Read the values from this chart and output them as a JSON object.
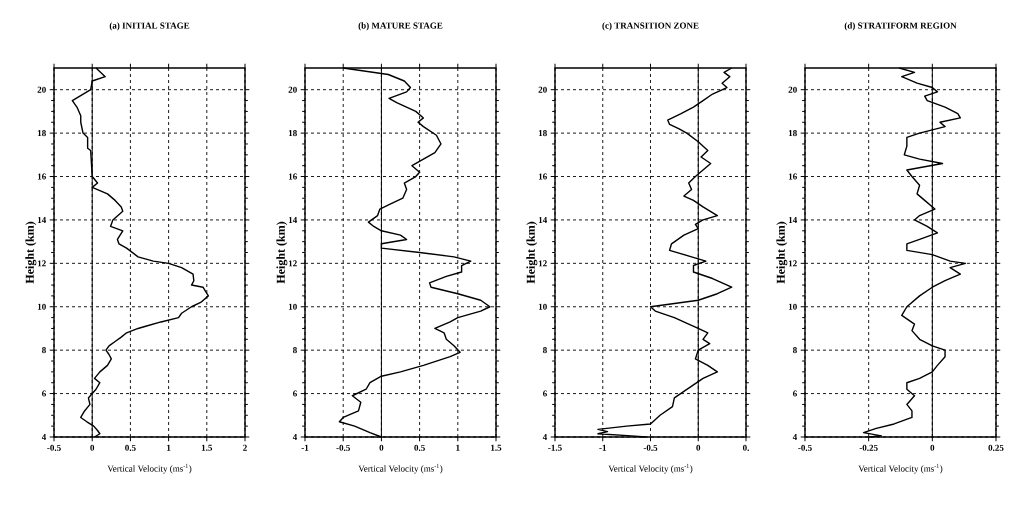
{
  "chart_data": [
    {
      "type": "line",
      "title": "(a) INITIAL STAGE",
      "xlabel": "Vertical Velocity (ms$^{-1}$)",
      "ylabel": "Height (km)",
      "xlim": [
        -0.5,
        2
      ],
      "xticks": [
        -0.5,
        0,
        0.5,
        1,
        1.5,
        2
      ],
      "ylim": [
        4,
        21
      ],
      "yticks": [
        4,
        6,
        8,
        10,
        12,
        14,
        16,
        18,
        20
      ],
      "grid": true,
      "ref_lines": [
        {
          "axis": "x",
          "value": 0,
          "color": "#000000",
          "line_style": "solid"
        }
      ],
      "series": [
        {
          "color": "#000000",
          "x": [
            0.05,
            0.17,
            0.0,
            -0.02,
            -0.26,
            -0.2,
            -0.15,
            -0.15,
            -0.12,
            -0.06,
            -0.06,
            -0.02,
            0.0,
            0.07,
            0.0,
            0.2,
            0.3,
            0.38,
            0.4,
            0.27,
            0.24,
            0.4,
            0.33,
            0.35,
            0.45,
            0.6,
            0.8,
            1.0,
            1.17,
            1.32,
            1.33,
            1.3,
            1.45,
            1.52,
            1.42,
            1.3,
            1.17,
            1.13,
            0.9,
            0.7,
            0.6,
            0.45,
            0.38,
            0.3,
            0.22,
            0.18,
            0.22,
            0.25,
            0.2,
            0.1,
            0.03,
            0.1,
            0.05,
            0.0,
            -0.05,
            -0.03,
            -0.1,
            -0.15,
            -0.07,
            0.02,
            0.07,
            0.1,
            0.03
          ],
          "values": [
            21,
            20.6,
            20.4,
            20,
            19.5,
            19.2,
            18.8,
            18.5,
            18,
            17.8,
            17.3,
            17.2,
            16,
            15.7,
            15.5,
            15.2,
            14.9,
            14.6,
            14.4,
            14,
            13.7,
            13.5,
            13.1,
            12.9,
            12.7,
            12.3,
            12.1,
            12,
            11.8,
            11.5,
            11.2,
            11,
            10.9,
            10.5,
            10.2,
            10,
            9.7,
            9.5,
            9.3,
            9.1,
            9.0,
            8.8,
            8.6,
            8.4,
            8.2,
            8,
            7.8,
            7.6,
            7.3,
            7.0,
            6.7,
            6.5,
            6.2,
            6,
            5.8,
            5.5,
            5.2,
            4.9,
            4.7,
            4.5,
            4.3,
            4.15,
            4
          ]
        }
      ]
    },
    {
      "type": "line",
      "title": "(b) MATURE STAGE",
      "xlabel": "Vertical Velocity (ms$^{-1}$)",
      "ylabel": "Height (km)",
      "xlim": [
        -1,
        1.5
      ],
      "xticks": [
        -1,
        -0.5,
        0,
        0.5,
        1,
        1.5
      ],
      "ylim": [
        4,
        21
      ],
      "yticks": [
        4,
        6,
        8,
        10,
        12,
        14,
        16,
        18,
        20
      ],
      "grid": true,
      "ref_lines": [
        {
          "axis": "x",
          "value": 0,
          "color": "#000000",
          "line_style": "solid"
        }
      ],
      "series": [
        {
          "color": "#000000",
          "x": [
            -0.5,
            0.09,
            0.3,
            0.38,
            0.33,
            0.1,
            0.2,
            0.45,
            0.55,
            0.48,
            0.55,
            0.72,
            0.78,
            0.7,
            0.55,
            0.4,
            0.5,
            0.45,
            0.3,
            0.33,
            0.28,
            0.1,
            -0.02,
            -0.05,
            -0.17,
            -0.1,
            0.0,
            0.25,
            0.33,
            0.0,
            0.0,
            0.5,
            0.95,
            1.17,
            1.05,
            1.05,
            0.85,
            0.63,
            0.65,
            1.0,
            1.3,
            1.42,
            1.3,
            1.0,
            0.9,
            0.7,
            0.82,
            0.85,
            0.95,
            1.03,
            0.9,
            0.55,
            0.25,
            0.0,
            -0.15,
            -0.2,
            -0.38,
            -0.27,
            -0.3,
            -0.5,
            -0.55,
            -0.35,
            -0.15,
            0.0
          ],
          "values": [
            21,
            20.7,
            20.4,
            20.1,
            19.9,
            19.6,
            19.4,
            19.0,
            18.7,
            18.5,
            18.3,
            17.9,
            17.5,
            17.1,
            16.8,
            16.5,
            16.2,
            16,
            15.7,
            15.4,
            15,
            14.7,
            14.5,
            14.2,
            13.9,
            13.7,
            13.5,
            13.3,
            13.1,
            12.9,
            12.7,
            12.5,
            12.3,
            12.1,
            11.9,
            11.6,
            11.4,
            11.1,
            10.9,
            10.6,
            10.3,
            10,
            9.8,
            9.5,
            9.3,
            9,
            8.8,
            8.5,
            8.2,
            7.9,
            7.7,
            7.3,
            7.0,
            6.8,
            6.5,
            6.2,
            5.9,
            5.6,
            5.2,
            4.9,
            4.7,
            4.5,
            4.2,
            4
          ]
        }
      ]
    },
    {
      "type": "line",
      "title": "(c) TRANSITION ZONE",
      "xlabel": "Vertical Velocity (ms$^{-1}$)",
      "ylabel": "Height (km)",
      "xlim": [
        -1.5,
        0.5
      ],
      "xticks": [
        -1.5,
        -1,
        -0.5,
        0,
        {
          "value": 0.5,
          "label": "0."
        }
      ],
      "ylim": [
        4,
        21
      ],
      "yticks": [
        4,
        6,
        8,
        10,
        12,
        14,
        16,
        18,
        20
      ],
      "grid": true,
      "ref_lines": [
        {
          "axis": "x",
          "value": 0,
          "color": "#000000",
          "line_style": "solid"
        }
      ],
      "series": [
        {
          "color": "#000000",
          "x": [
            0.35,
            0.27,
            0.33,
            0.25,
            0.3,
            0.15,
            0.05,
            -0.05,
            -0.18,
            -0.32,
            -0.3,
            -0.2,
            -0.12,
            0.0,
            0.1,
            0.03,
            0.13,
            0.05,
            -0.03,
            -0.1,
            -0.07,
            -0.15,
            -0.05,
            0.05,
            0.2,
            0.05,
            -0.03,
            0.0,
            -0.15,
            -0.28,
            -0.3,
            -0.07,
            0.08,
            -0.05,
            -0.05,
            0.15,
            0.35,
            0.2,
            0.0,
            -0.5,
            -0.45,
            -0.25,
            -0.1,
            0.0,
            0.1,
            0.05,
            0.12,
            0.0,
            -0.03,
            0.1,
            0.2,
            0.05,
            -0.05,
            -0.15,
            -0.25,
            -0.27,
            -0.4,
            -0.5,
            -0.75,
            -1.05,
            -0.95,
            -1.05,
            -0.7,
            -0.55
          ],
          "values": [
            21,
            20.8,
            20.6,
            20.3,
            20.1,
            19.8,
            19.5,
            19.2,
            18.9,
            18.6,
            18.4,
            18.2,
            18,
            17.6,
            17.2,
            16.9,
            16.6,
            16.3,
            16,
            15.7,
            15.4,
            15.1,
            14.9,
            14.6,
            14.2,
            14,
            13.8,
            13.6,
            13.3,
            12.9,
            12.6,
            12.3,
            12.1,
            11.9,
            11.6,
            11.3,
            10.9,
            10.6,
            10.3,
            10,
            9.8,
            9.5,
            9.2,
            9.0,
            8.8,
            8.5,
            8.3,
            8.0,
            7.6,
            7.3,
            7.0,
            6.7,
            6.4,
            6.1,
            5.8,
            5.4,
            5.0,
            4.6,
            4.5,
            4.35,
            4.25,
            4.15,
            4.05,
            4
          ]
        }
      ]
    },
    {
      "type": "line",
      "title": "(d) STRATIFORM REGION",
      "xlabel": "Vertical Velocity (ms$^{-1}$)",
      "ylabel": "Height (km)",
      "xlim": [
        -0.5,
        0.25
      ],
      "xticks": [
        -0.5,
        -0.25,
        0,
        0.25
      ],
      "ylim": [
        4,
        21
      ],
      "yticks": [
        4,
        6,
        8,
        10,
        12,
        14,
        16,
        18,
        20
      ],
      "grid": true,
      "ref_lines": [
        {
          "axis": "x",
          "value": 0,
          "color": "#000000",
          "line_style": "solid"
        }
      ],
      "series": [
        {
          "color": "#000000",
          "x": [
            -0.13,
            -0.07,
            -0.12,
            -0.06,
            0.0,
            0.02,
            -0.03,
            -0.02,
            0.05,
            0.1,
            0.11,
            0.03,
            0.05,
            -0.05,
            -0.1,
            -0.1,
            -0.11,
            -0.05,
            0.04,
            -0.1,
            -0.08,
            -0.05,
            -0.06,
            -0.03,
            0.01,
            -0.05,
            -0.07,
            -0.02,
            0.02,
            -0.05,
            -0.1,
            -0.1,
            0.0,
            0.07,
            0.13,
            0.07,
            0.11,
            0.05,
            0.0,
            -0.05,
            -0.1,
            -0.12,
            -0.07,
            -0.08,
            -0.05,
            0.0,
            0.05,
            0.05,
            0.02,
            0.0,
            -0.05,
            -0.1,
            -0.1,
            -0.07,
            -0.1,
            -0.08,
            -0.08,
            -0.15,
            -0.22,
            -0.27,
            -0.2,
            -0.25
          ],
          "values": [
            21,
            20.8,
            20.6,
            20.3,
            20.1,
            19.9,
            19.7,
            19.5,
            19.2,
            18.9,
            18.7,
            18.5,
            18.3,
            18.0,
            17.8,
            17.4,
            17.0,
            16.8,
            16.6,
            16.3,
            16.0,
            15.6,
            15.2,
            14.9,
            14.5,
            14.2,
            14.0,
            13.7,
            13.4,
            13.1,
            12.9,
            12.6,
            12.4,
            12.1,
            12.0,
            11.8,
            11.5,
            11.2,
            10.9,
            10.5,
            10.0,
            9.6,
            9.2,
            8.9,
            8.5,
            8.2,
            8.0,
            7.7,
            7.3,
            7.0,
            6.7,
            6.5,
            6.2,
            5.9,
            5.5,
            5.2,
            4.9,
            4.6,
            4.4,
            4.2,
            4.05,
            4
          ]
        }
      ]
    }
  ]
}
